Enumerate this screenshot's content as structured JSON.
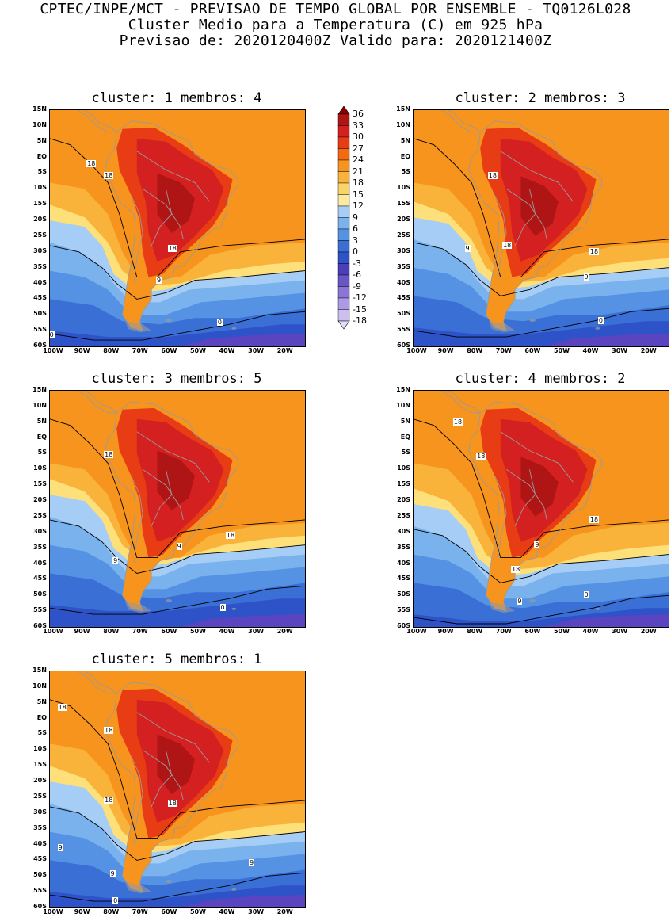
{
  "header": {
    "line1": "CPTEC/INPE/MCT - PREVISAO DE TEMPO GLOBAL POR ENSEMBLE - TQ0126L028",
    "line2": "Cluster Medio para a Temperatura (C) em 925 hPa",
    "line3": "Previsao de: 2020120400Z   Valido para: 2020121400Z"
  },
  "lat_labels": [
    "15N",
    "10N",
    "5N",
    "EQ",
    "5S",
    "10S",
    "15S",
    "20S",
    "25S",
    "30S",
    "35S",
    "40S",
    "45S",
    "50S",
    "55S",
    "60S"
  ],
  "lon_labels": [
    "100W",
    "90W",
    "80W",
    "70W",
    "60W",
    "50W",
    "40W",
    "30W",
    "20W"
  ],
  "panels": [
    {
      "title": "cluster: 1   membros: 4",
      "contour_labels": [
        "18",
        "18",
        "18",
        "9",
        "0",
        "0"
      ]
    },
    {
      "title": "cluster: 2   membros: 3",
      "contour_labels": [
        "18",
        "18",
        "18",
        "9",
        "9",
        "0"
      ]
    },
    {
      "title": "cluster: 3   membros: 5",
      "contour_labels": [
        "18",
        "18",
        "9",
        "9",
        "0"
      ]
    },
    {
      "title": "cluster: 4   membros: 2",
      "contour_labels": [
        "18",
        "18",
        "18",
        "18",
        "9",
        "9",
        "0"
      ]
    },
    {
      "title": "cluster: 5   membros: 1",
      "contour_labels": [
        "18",
        "18",
        "18",
        "18",
        "9",
        "9",
        "9",
        "0"
      ]
    }
  ],
  "colorbar": {
    "labels": [
      "36",
      "33",
      "30",
      "27",
      "24",
      "21",
      "18",
      "15",
      "12",
      "9",
      "6",
      "3",
      "0",
      "-3",
      "-6",
      "-9",
      "-12",
      "-15",
      "-18"
    ],
    "colors": [
      "#8b0000",
      "#b01515",
      "#d42020",
      "#e83c14",
      "#f46b0f",
      "#f7941d",
      "#f9b23a",
      "#fbd36b",
      "#fde9a0",
      "#a6cdf5",
      "#7ab2ee",
      "#5592e3",
      "#3a6fd6",
      "#2e52c8",
      "#4a3fb8",
      "#6a55c7",
      "#8b76d8",
      "#ab9be5",
      "#cbbff0",
      "#e3dbf7"
    ]
  },
  "palette": {
    "ocean_warm": "#f7941d",
    "ocean_mild": "#f9b23a",
    "ocean_cool": "#fde07a",
    "ocean_cold1": "#a6cdf5",
    "ocean_cold2": "#7ab2ee",
    "ocean_cold3": "#5592e3",
    "ocean_cold4": "#3a6fd6",
    "ocean_cold5": "#2e52c8",
    "polar": "#5a44c0",
    "land_hot1": "#e83c14",
    "land_hot2": "#d42020",
    "land_hot3": "#b01515",
    "borders": "#9a9a9a"
  }
}
